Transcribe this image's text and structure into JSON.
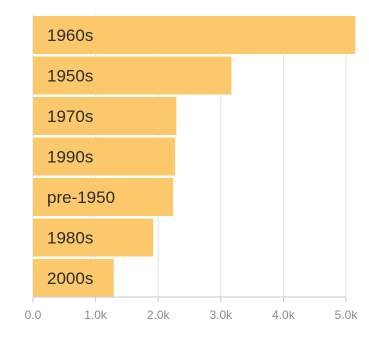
{
  "chart_data": {
    "type": "bar",
    "orientation": "horizontal",
    "categories": [
      "1960s",
      "1950s",
      "1970s",
      "1990s",
      "pre-1950",
      "1980s",
      "2000s"
    ],
    "values": [
      5150,
      3170,
      2290,
      2270,
      2240,
      1920,
      1290
    ],
    "xlim": [
      0,
      5000
    ],
    "x_ticks": [
      "0.0",
      "1.0k",
      "2.0k",
      "3.0k",
      "4.0k",
      "5.0k"
    ],
    "x_tick_values": [
      0,
      1000,
      2000,
      3000,
      4000,
      5000
    ],
    "grid": true,
    "bar_color": "#fbc96b"
  }
}
